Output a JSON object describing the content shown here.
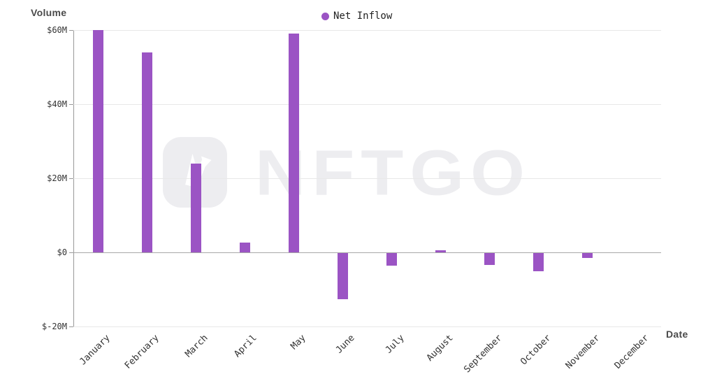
{
  "chart_data": {
    "type": "bar",
    "title": "",
    "ylabel": "Volume",
    "xlabel": "Date",
    "categories": [
      "January",
      "February",
      "March",
      "April",
      "May",
      "June",
      "July",
      "August",
      "September",
      "October",
      "November",
      "December"
    ],
    "series": [
      {
        "name": "Net Inflow",
        "color": "#9b54c4",
        "values": [
          60,
          54,
          24,
          2.6,
          59,
          -12.5,
          -3.4,
          0.5,
          -3.2,
          -4.9,
          -1.3,
          0
        ]
      }
    ],
    "value_unit": "USD millions",
    "yticks": {
      "values": [
        60,
        40,
        20,
        0,
        -20
      ],
      "labels": [
        "$60M",
        "$40M",
        "$20M",
        "$0",
        "$-20M"
      ]
    },
    "ylim": [
      -20,
      60
    ],
    "grid": true,
    "legend_position": "top-center",
    "x_label_rotation": -45
  },
  "watermark": {
    "text": "NFTGO",
    "icon_name": "nftgo-logo-icon"
  },
  "colors": {
    "bar": "#9b54c4",
    "grid_line": "#e8e8e8",
    "zero_line": "#a8a8a8",
    "axis_line": "#999999",
    "tick_text": "#333333",
    "axis_title_text": "#4a4a4a",
    "watermark": "#ededf0",
    "background": "#ffffff"
  }
}
